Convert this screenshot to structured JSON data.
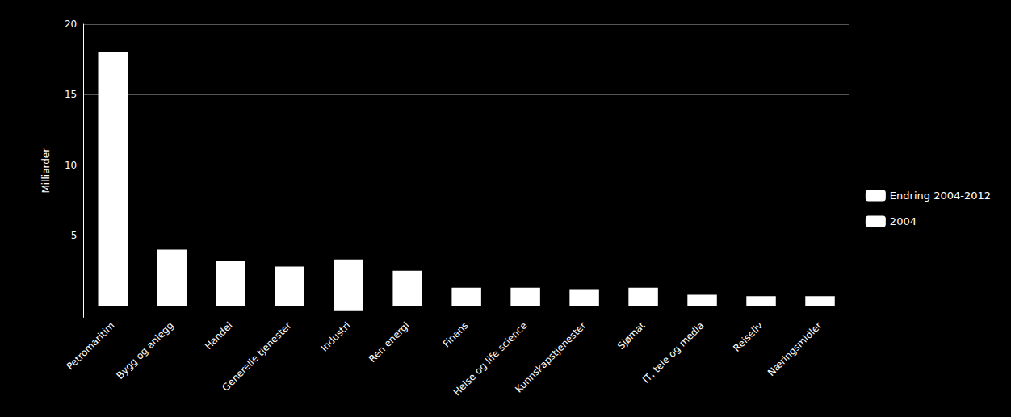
{
  "chart_data": {
    "type": "bar",
    "categories": [
      "Petromaritim",
      "Bygg og anlegg",
      "Handel",
      "Generelle tjenester",
      "Industri",
      "Ren energi",
      "Finans",
      "Helse og life science",
      "Kunnskapstjenester",
      "Sjømat",
      "IT, tele og media",
      "Reiseliv",
      "Næringsmidler"
    ],
    "series": [
      {
        "name": "Endring 2004-2012",
        "color": "#ffffff",
        "values": [
          18.0,
          4.0,
          3.2,
          2.8,
          3.3,
          2.5,
          1.3,
          1.3,
          1.2,
          1.3,
          0.8,
          0.7,
          0.7
        ]
      },
      {
        "name": "2004",
        "color": "#ffffff",
        "values": [
          null,
          null,
          null,
          null,
          -0.3,
          null,
          null,
          null,
          null,
          null,
          null,
          null,
          null
        ]
      }
    ],
    "stacked": true,
    "ylabel": "Milliarder",
    "ylim": [
      -0.8,
      20
    ],
    "yticks": [
      {
        "value": 0,
        "label": "-"
      },
      5,
      10,
      15,
      20
    ],
    "grid": true,
    "legend": "right"
  }
}
